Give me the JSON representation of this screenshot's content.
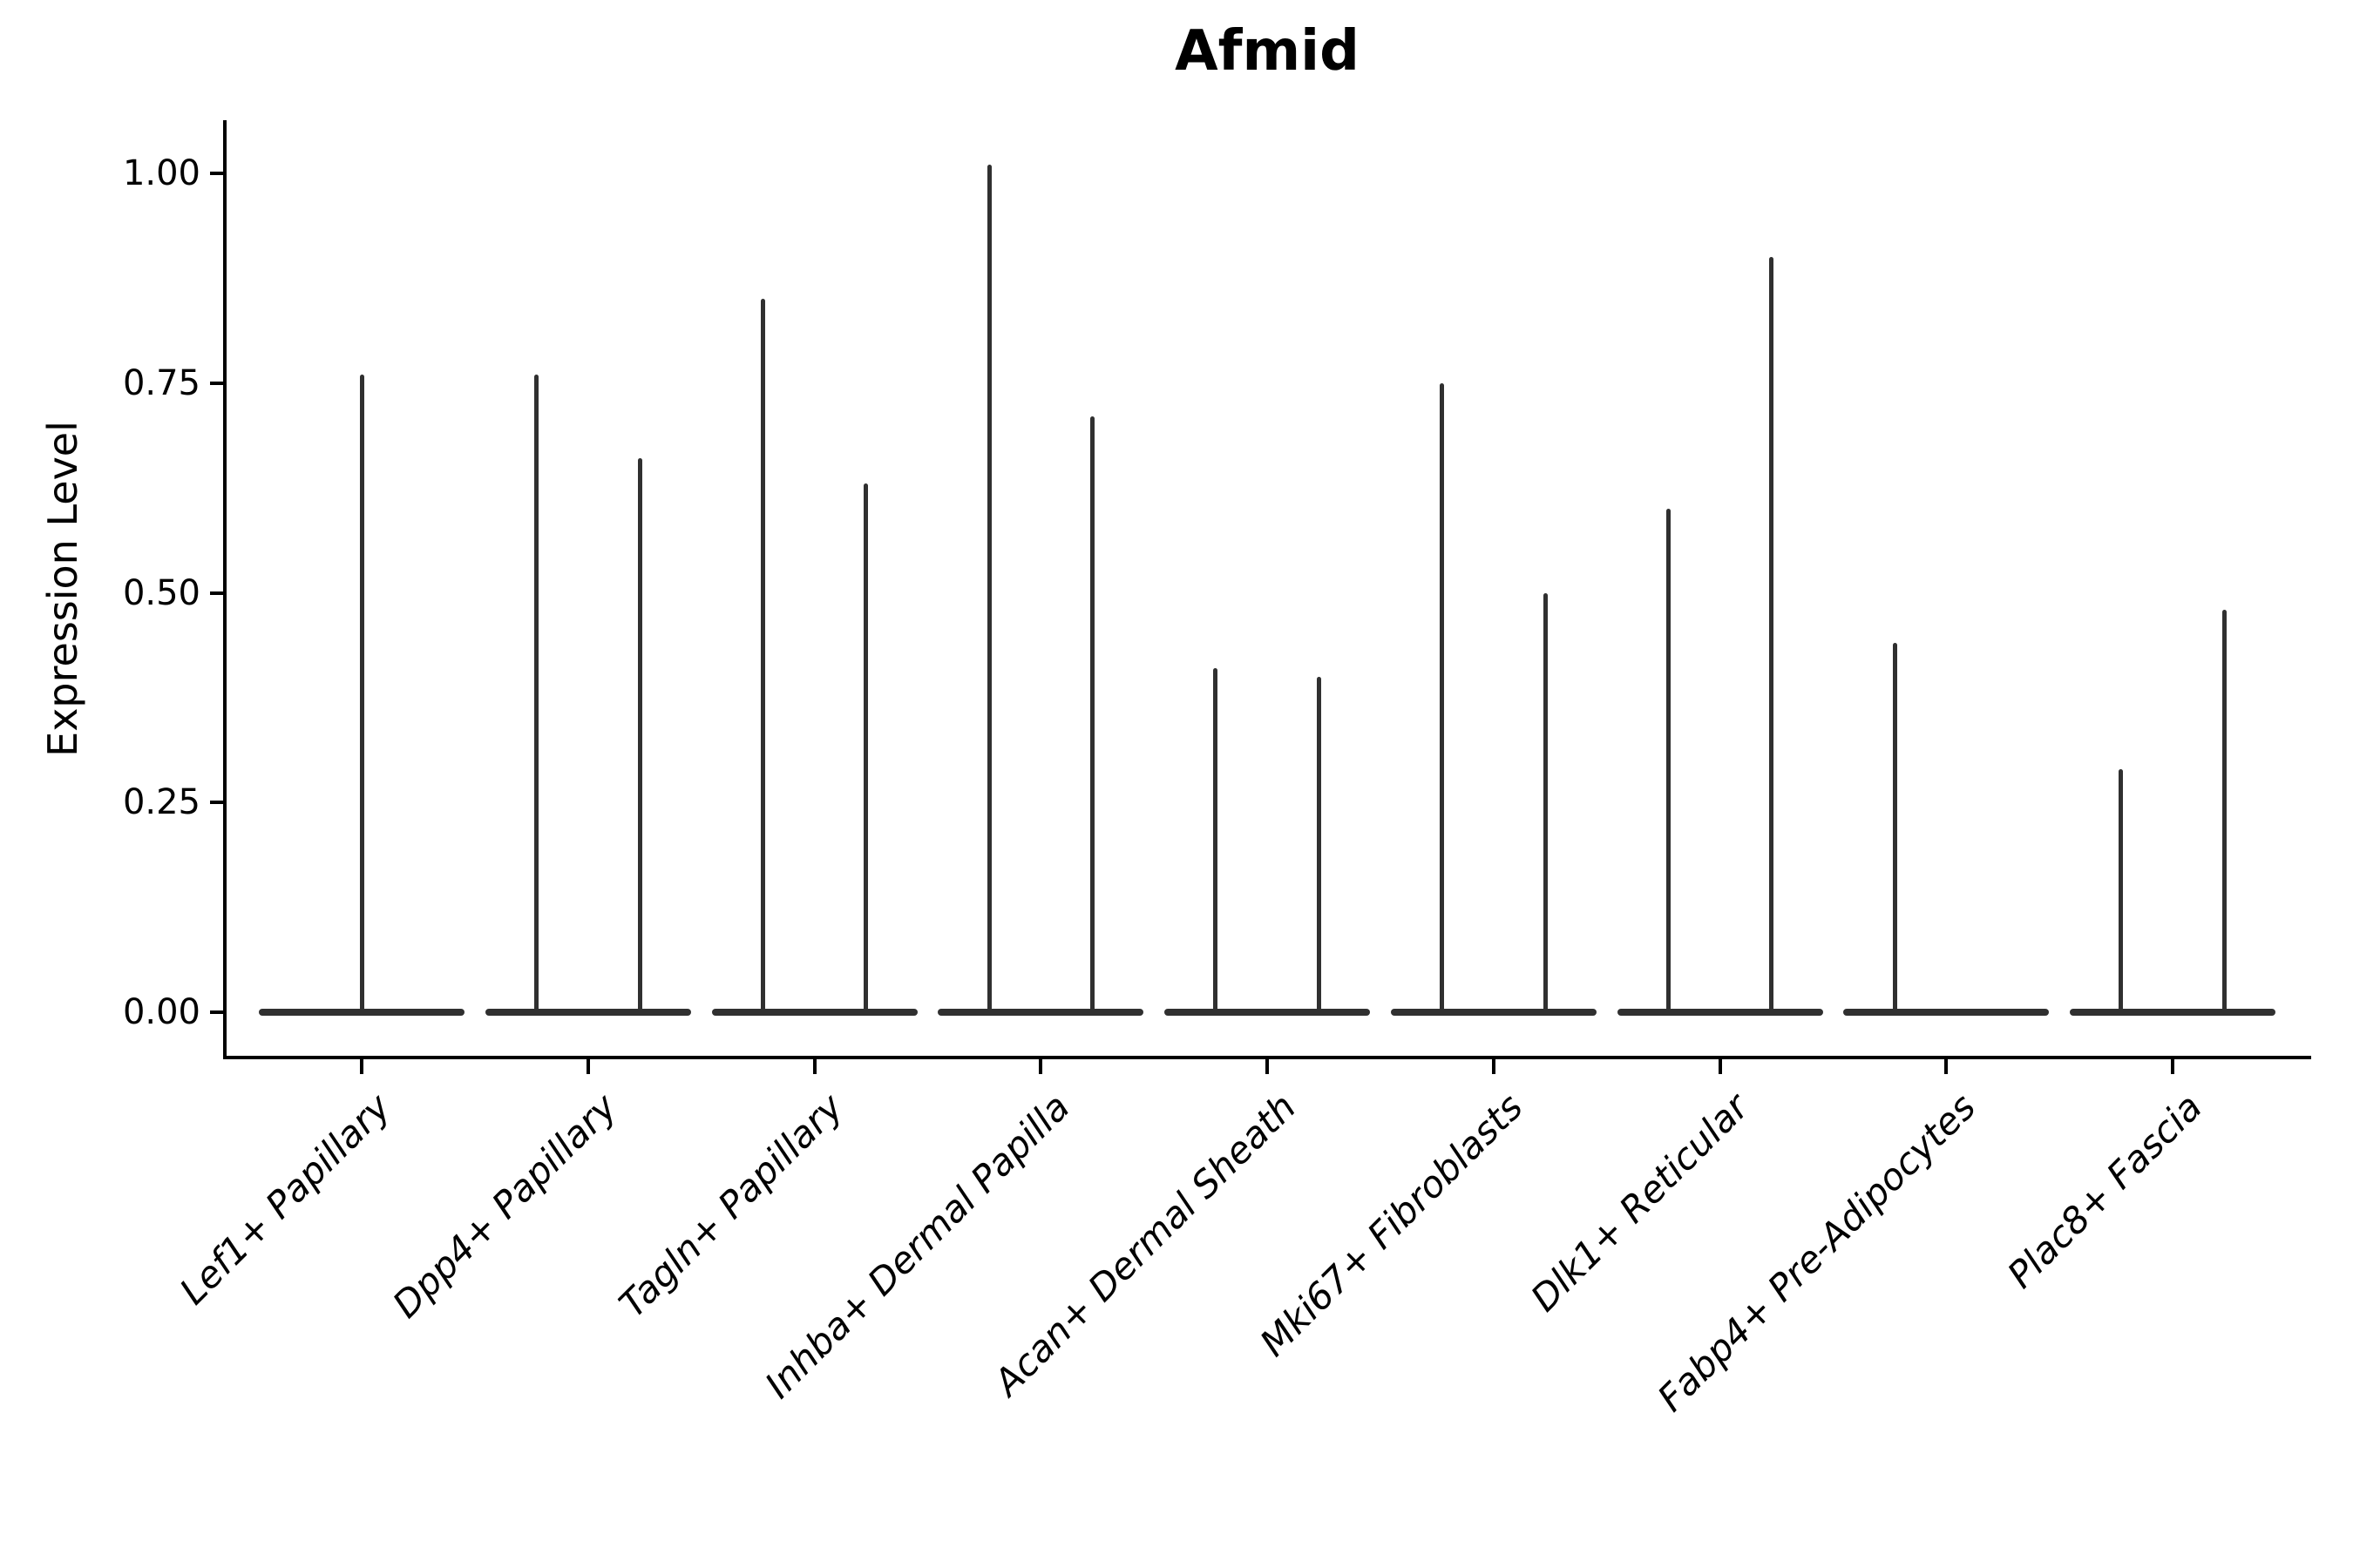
{
  "figure": {
    "title": "Afmid",
    "ylabel": "Expression Level"
  },
  "chart_data": {
    "type": "violin",
    "title": "Afmid",
    "xlabel": "",
    "ylabel": "Expression Level",
    "ylim": [
      0,
      1.06
    ],
    "grid": false,
    "legend": "none",
    "yticks": [
      {
        "value": 1.0,
        "label": "1.00"
      },
      {
        "value": 0.75,
        "label": "0.75"
      },
      {
        "value": 0.5,
        "label": "0.50"
      },
      {
        "value": 0.25,
        "label": "0.25"
      },
      {
        "value": 0.0,
        "label": "0.00"
      }
    ],
    "categories": [
      "Lef1+ Papillary",
      "Dpp4+ Papillary",
      "Tagln+ Papillary",
      "Inhba+ Dermal Papilla",
      "Acan+ Dermal Sheath",
      "Mki67+ Fibroblasts",
      "Dlk1+ Reticular",
      "Fabp4+ Pre-Adipocytes",
      "Plac8+ Fascia"
    ],
    "violins": [
      {
        "category": "Lef1+ Papillary",
        "spikes": [
          {
            "position": "center",
            "max": 0.76
          }
        ]
      },
      {
        "category": "Dpp4+ Papillary",
        "spikes": [
          {
            "position": "left",
            "max": 0.76
          },
          {
            "position": "right",
            "max": 0.66
          }
        ]
      },
      {
        "category": "Tagln+ Papillary",
        "spikes": [
          {
            "position": "left",
            "max": 0.85
          },
          {
            "position": "right",
            "max": 0.63
          }
        ]
      },
      {
        "category": "Inhba+ Dermal Papilla",
        "spikes": [
          {
            "position": "left",
            "max": 1.01
          },
          {
            "position": "right",
            "max": 0.71
          }
        ]
      },
      {
        "category": "Acan+ Dermal Sheath",
        "spikes": [
          {
            "position": "left",
            "max": 0.41
          },
          {
            "position": "right",
            "max": 0.4
          }
        ]
      },
      {
        "category": "Mki67+ Fibroblasts",
        "spikes": [
          {
            "position": "left",
            "max": 0.75
          },
          {
            "position": "right",
            "max": 0.5
          }
        ]
      },
      {
        "category": "Dlk1+ Reticular",
        "spikes": [
          {
            "position": "left",
            "max": 0.6
          },
          {
            "position": "right",
            "max": 0.9
          }
        ]
      },
      {
        "category": "Fabp4+ Pre-Adipocytes",
        "spikes": [
          {
            "position": "left",
            "max": 0.44
          }
        ]
      },
      {
        "category": "Plac8+ Fascia",
        "spikes": [
          {
            "position": "left",
            "max": 0.29
          },
          {
            "position": "right",
            "max": 0.48
          }
        ]
      }
    ],
    "baseline_value": 0.0,
    "colors": {
      "violin": "#303030",
      "axis": "#000000",
      "text": "#000000",
      "background": "#ffffff"
    }
  }
}
